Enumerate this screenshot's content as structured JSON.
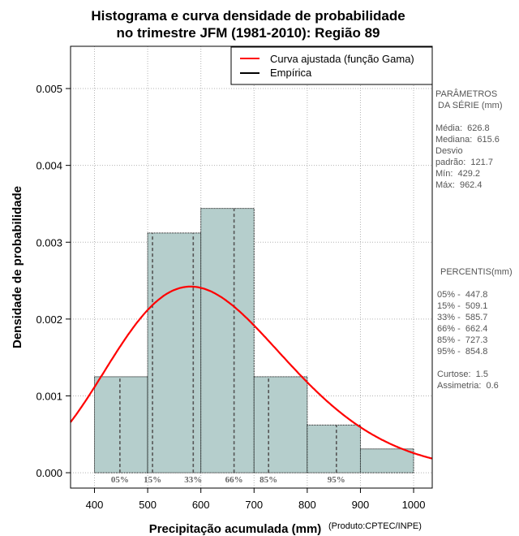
{
  "chart_data": {
    "type": "histogram",
    "title_line1": "Histograma e curva densidade de probabilidade",
    "title_line2": "no trimestre JFM (1981-2010): Região 89",
    "xlabel": "Precipitação acumulada (mm)",
    "ylabel": "Densidade de probabilidade",
    "credit": "(Produto:CPTEC/INPE)",
    "xlim": [
      355,
      1035
    ],
    "ylim": [
      -0.0002,
      0.00555
    ],
    "x_ticks": [
      400,
      500,
      600,
      700,
      800,
      900,
      1000
    ],
    "x_tick_labels": [
      "400",
      "500",
      "600",
      "700",
      "800",
      "900",
      "1000"
    ],
    "y_ticks": [
      0.0,
      0.001,
      0.002,
      0.003,
      0.004,
      0.005
    ],
    "y_tick_labels": [
      "0.000",
      "0.001",
      "0.002",
      "0.003",
      "0.004",
      "0.005"
    ],
    "grid": true,
    "bin_edges": [
      400,
      500,
      600,
      700,
      800,
      900,
      1000
    ],
    "bin_density": [
      0.00125,
      0.00312,
      0.00344,
      0.00125,
      0.00062,
      0.00031
    ],
    "bar_color": "#b5cecc",
    "curve": {
      "name": "Curva ajustada (função Gama)",
      "color": "#ff0000",
      "shape": 13.6,
      "mean": 626.8
    },
    "empirical": {
      "name": "Empírica",
      "color": "#000000"
    },
    "percentiles": [
      {
        "label": "05%",
        "value": 447.8
      },
      {
        "label": "15%",
        "value": 509.1
      },
      {
        "label": "33%",
        "value": 585.7
      },
      {
        "label": "66%",
        "value": 662.4
      },
      {
        "label": "85%",
        "value": 727.3
      },
      {
        "label": "95%",
        "value": 854.8
      }
    ]
  },
  "side_panel": {
    "params_title_1": "PARÂMETROS",
    "params_title_2": " DA SÉRIE (mm)",
    "media": "Média:  626.8",
    "mediana": "Mediana:  615.6",
    "desvio_1": "Desvio",
    "desvio_2": "padrão:  121.7",
    "min": "Mín:  429.2",
    "max": "Máx:  962.4",
    "percentis_title": "PERCENTIS(mm)",
    "p05": "05% -  447.8",
    "p15": "15% -  509.1",
    "p33": "33% -  585.7",
    "p66": "66% -  662.4",
    "p85": "85% -  727.3",
    "p95": "95% -  854.8",
    "curtose": "Curtose:  1.5",
    "assimetria": "Assimetria:  0.6"
  }
}
